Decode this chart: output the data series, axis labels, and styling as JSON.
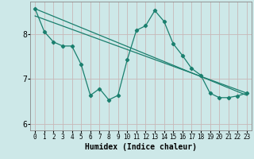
{
  "xlabel": "Humidex (Indice chaleur)",
  "background_color": "#cde8e8",
  "grid_color": "#c8b8b8",
  "line_color": "#1a7f6e",
  "xlim": [
    -0.5,
    23.5
  ],
  "ylim": [
    5.85,
    8.72
  ],
  "yticks": [
    6,
    7,
    8
  ],
  "xticks": [
    0,
    1,
    2,
    3,
    4,
    5,
    6,
    7,
    8,
    9,
    10,
    11,
    12,
    13,
    14,
    15,
    16,
    17,
    18,
    19,
    20,
    21,
    22,
    23
  ],
  "series1_x": [
    0,
    1,
    2,
    3,
    4,
    5,
    6,
    7,
    8,
    9,
    10,
    11,
    12,
    13,
    14,
    15,
    16,
    17,
    18,
    19,
    20,
    21,
    22,
    23
  ],
  "series1_y": [
    8.56,
    8.05,
    7.82,
    7.73,
    7.73,
    7.32,
    6.63,
    6.78,
    6.53,
    6.63,
    7.42,
    8.08,
    8.18,
    8.52,
    8.28,
    7.78,
    7.52,
    7.23,
    7.08,
    6.68,
    6.58,
    6.58,
    6.62,
    6.68
  ],
  "series2_x": [
    0,
    23
  ],
  "series2_y": [
    8.56,
    6.63
  ],
  "series3_x": [
    0,
    23
  ],
  "series3_y": [
    8.4,
    6.68
  ]
}
